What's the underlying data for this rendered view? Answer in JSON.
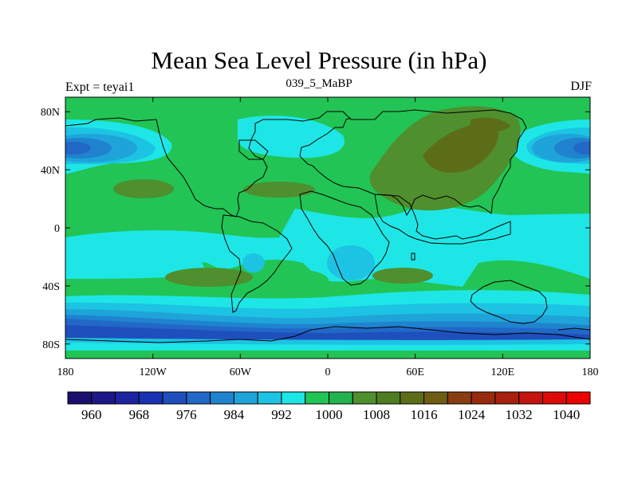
{
  "figure": {
    "title": "Mean Sea Level Pressure (in hPa)",
    "left_label": "Expt = teyai1",
    "center_label": "039_5_MaBP",
    "right_label": "DJF"
  },
  "chart_data": {
    "type": "heatmap",
    "title": "Mean Sea Level Pressure (in hPa)",
    "subtitle_left": "Expt = teyai1",
    "subtitle_center": "039_5_MaBP",
    "subtitle_right": "DJF",
    "xlim": [
      -180,
      180
    ],
    "ylim": [
      -90,
      90
    ],
    "x_ticks": [
      {
        "value": -180,
        "label": "180"
      },
      {
        "value": -120,
        "label": "120W"
      },
      {
        "value": -60,
        "label": "60W"
      },
      {
        "value": 0,
        "label": "0"
      },
      {
        "value": 60,
        "label": "60E"
      },
      {
        "value": 120,
        "label": "120E"
      },
      {
        "value": 180,
        "label": "180"
      }
    ],
    "y_ticks": [
      {
        "value": 80,
        "label": "80N"
      },
      {
        "value": 40,
        "label": "40N"
      },
      {
        "value": 0,
        "label": "0"
      },
      {
        "value": -40,
        "label": "40S"
      },
      {
        "value": -80,
        "label": "80S"
      }
    ],
    "colorbar": {
      "levels": [
        956,
        960,
        964,
        968,
        972,
        976,
        980,
        984,
        988,
        992,
        996,
        1000,
        1004,
        1008,
        1012,
        1016,
        1020,
        1024,
        1028,
        1032,
        1036,
        1040,
        1044
      ],
      "colors": [
        "#1a0f6e",
        "#1e1787",
        "#1e24a0",
        "#1a32b0",
        "#1f4fbd",
        "#2168c7",
        "#1f83cf",
        "#1ea4d9",
        "#1cc3e3",
        "#1ee6e6",
        "#22c455",
        "#23b34e",
        "#4f8f2e",
        "#4e7c22",
        "#5b6e17",
        "#6e5c12",
        "#8a3d10",
        "#982b0e",
        "#a8200e",
        "#c4140e",
        "#dd0a0a",
        "#ee0000"
      ],
      "labels": [
        {
          "value": 960,
          "label": "960"
        },
        {
          "value": 968,
          "label": "968"
        },
        {
          "value": 976,
          "label": "976"
        },
        {
          "value": 984,
          "label": "984"
        },
        {
          "value": 992,
          "label": "992"
        },
        {
          "value": 1000,
          "label": "1000"
        },
        {
          "value": 1008,
          "label": "1008"
        },
        {
          "value": 1016,
          "label": "1016"
        },
        {
          "value": 1024,
          "label": "1024"
        },
        {
          "value": 1032,
          "label": "1032"
        },
        {
          "value": 1040,
          "label": "1040"
        }
      ]
    },
    "field_summary": {
      "background": 1006,
      "regions": [
        {
          "name": "aleutian-low-west",
          "lon": -168,
          "lat": 54,
          "value": 986
        },
        {
          "name": "aleutian-low-east",
          "lon": 172,
          "lat": 54,
          "value": 986
        },
        {
          "name": "siberian-high",
          "lon": 85,
          "lat": 58,
          "value": 1018
        },
        {
          "name": "north-atlantic-low",
          "lon": -22,
          "lat": 58,
          "value": 1000
        },
        {
          "name": "subtropical-high-pacific",
          "lon": -135,
          "lat": 30,
          "value": 1012
        },
        {
          "name": "subtropical-high-atlantic",
          "lon": -40,
          "lat": 28,
          "value": 1012
        },
        {
          "name": "south-atlantic-high",
          "lon": -45,
          "lat": -35,
          "value": 1012
        },
        {
          "name": "southern-ocean-trough",
          "lon": 0,
          "lat": -65,
          "value": 984
        }
      ]
    }
  }
}
